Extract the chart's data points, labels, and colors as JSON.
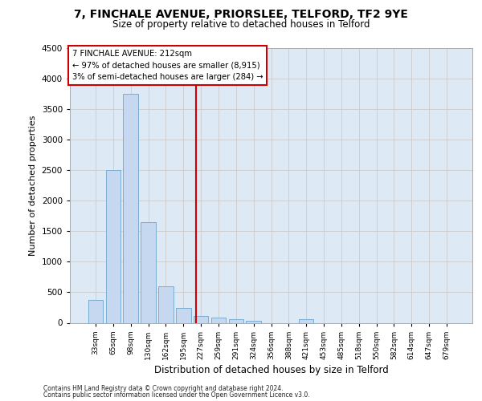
{
  "title_line1": "7, FINCHALE AVENUE, PRIORSLEE, TELFORD, TF2 9YE",
  "title_line2": "Size of property relative to detached houses in Telford",
  "xlabel": "Distribution of detached houses by size in Telford",
  "ylabel": "Number of detached properties",
  "categories": [
    "33sqm",
    "65sqm",
    "98sqm",
    "130sqm",
    "162sqm",
    "195sqm",
    "227sqm",
    "259sqm",
    "291sqm",
    "324sqm",
    "356sqm",
    "388sqm",
    "421sqm",
    "453sqm",
    "485sqm",
    "518sqm",
    "550sqm",
    "582sqm",
    "614sqm",
    "647sqm",
    "679sqm"
  ],
  "values": [
    370,
    2500,
    3750,
    1650,
    600,
    240,
    110,
    80,
    55,
    30,
    0,
    0,
    55,
    0,
    0,
    0,
    0,
    0,
    0,
    0,
    0
  ],
  "bar_color": "#c5d8f0",
  "bar_edge_color": "#7aadd4",
  "vline_x": 5.7,
  "vline_color": "#cc0000",
  "annotation_line1": "7 FINCHALE AVENUE: 212sqm",
  "annotation_line2": "← 97% of detached houses are smaller (8,915)",
  "annotation_line3": "3% of semi-detached houses are larger (284) →",
  "annotation_box_facecolor": "#ffffff",
  "annotation_box_edgecolor": "#cc0000",
  "ylim": [
    0,
    4500
  ],
  "yticks": [
    0,
    500,
    1000,
    1500,
    2000,
    2500,
    3000,
    3500,
    4000,
    4500
  ],
  "grid_color": "#cccccc",
  "plot_bg_color": "#ddeaf5",
  "footer_line1": "Contains HM Land Registry data © Crown copyright and database right 2024.",
  "footer_line2": "Contains public sector information licensed under the Open Government Licence v3.0."
}
